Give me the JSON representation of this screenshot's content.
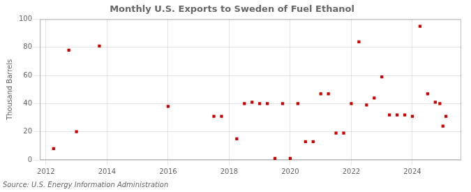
{
  "chart_data": {
    "type": "scatter",
    "title": "Monthly U.S. Exports to Sweden of Fuel Ethanol",
    "ylabel": "Thousand Barrels",
    "annotation": "Source: U.S. Energy Information Administration",
    "color": "#cc0000",
    "marker": "square",
    "grid": true,
    "xlim": [
      2011.8,
      2025.6
    ],
    "ylim": [
      0,
      100
    ],
    "xticks": [
      2012,
      2014,
      2016,
      2018,
      2020,
      2022,
      2024
    ],
    "yticks": [
      0,
      20,
      40,
      60,
      80,
      100
    ],
    "x": [
      2012.25,
      2012.75,
      2013.0,
      2013.75,
      2016.0,
      2017.5,
      2017.75,
      2018.25,
      2018.5,
      2018.75,
      2019.0,
      2019.25,
      2019.5,
      2019.75,
      2020.0,
      2020.25,
      2020.5,
      2020.75,
      2021.0,
      2021.25,
      2021.5,
      2021.75,
      2022.0,
      2022.25,
      2022.5,
      2022.75,
      2023.0,
      2023.25,
      2023.5,
      2023.75,
      2024.0,
      2024.25,
      2024.5,
      2024.75,
      2024.9,
      2025.0,
      2025.1
    ],
    "values": [
      8,
      78,
      20,
      81,
      38,
      31,
      31,
      15,
      40,
      41,
      40,
      40,
      1,
      40,
      1,
      40,
      13,
      13,
      47,
      47,
      19,
      19,
      40,
      84,
      39,
      44,
      59,
      32,
      32,
      32,
      31,
      95,
      47,
      41,
      40,
      24,
      31
    ]
  }
}
